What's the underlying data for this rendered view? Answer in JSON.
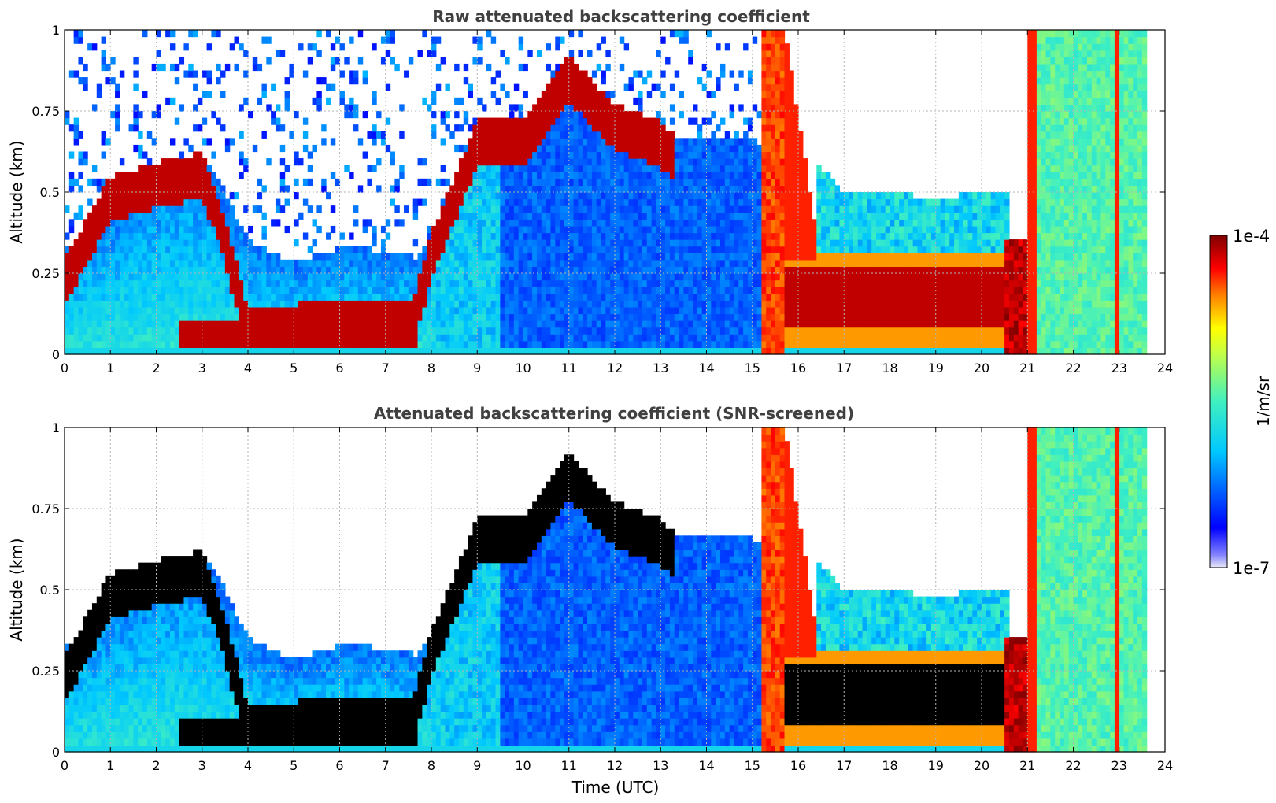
{
  "chart_data": [
    {
      "type": "heatmap",
      "title": "Raw attenuated backscattering coefficient",
      "xlabel": "",
      "ylabel": "Altitude (km)",
      "xlim": [
        0,
        24
      ],
      "ylim": [
        0,
        1
      ],
      "xticks": [
        0,
        1,
        2,
        3,
        4,
        5,
        6,
        7,
        8,
        9,
        10,
        11,
        12,
        13,
        14,
        15,
        16,
        17,
        18,
        19,
        20,
        21,
        22,
        23,
        24
      ],
      "yticks": [
        0,
        0.25,
        0.5,
        0.75,
        1
      ],
      "ytick_labels": [
        "0",
        "0.25",
        "0.5",
        "0.75",
        "1"
      ],
      "grid": true,
      "data_end_hour": 23.6
    },
    {
      "type": "heatmap",
      "title": "Attenuated backscattering coefficient (SNR-screened)",
      "xlabel": "Time (UTC)",
      "ylabel": "Altitude (km)",
      "xlim": [
        0,
        24
      ],
      "ylim": [
        0,
        1
      ],
      "xticks": [
        0,
        1,
        2,
        3,
        4,
        5,
        6,
        7,
        8,
        9,
        10,
        11,
        12,
        13,
        14,
        15,
        16,
        17,
        18,
        19,
        20,
        21,
        22,
        23,
        24
      ],
      "yticks": [
        0,
        0.25,
        0.5,
        0.75,
        1
      ],
      "ytick_labels": [
        "0",
        "0.25",
        "0.5",
        "0.75",
        "1"
      ],
      "grid": true,
      "data_end_hour": 23.6
    }
  ],
  "colorbar": {
    "label": "1/m/sr",
    "max_label": "1e-4",
    "min_label": "1e-7",
    "scale": "log",
    "colormap": [
      "#e8e8f8",
      "#0000ff",
      "#00c8ff",
      "#40f0c0",
      "#ffff00",
      "#ff8000",
      "#ff0000",
      "#800000"
    ]
  }
}
